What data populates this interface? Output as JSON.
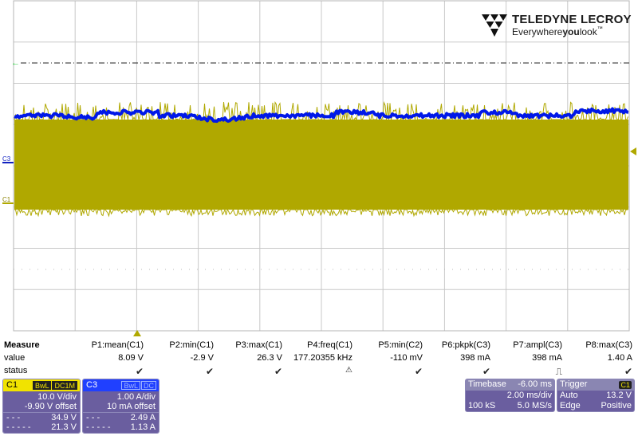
{
  "logo": {
    "brand": "TELEDYNE LECROY",
    "tag_pre": "Everywhere",
    "tag_bold": "you",
    "tag_post": "look",
    "tm": "™"
  },
  "markers": {
    "c3": "C3",
    "c1": "C1"
  },
  "colors": {
    "c1_trace": "#b0a800",
    "c3_trace": "#0018e8",
    "descriptor_body": "#6a5e9f",
    "c1_header": "#f1e300",
    "c3_header": "#2040ff",
    "trigger_marker": "#2ecc40"
  },
  "measure": {
    "title": "Measure",
    "row_value": "value",
    "row_status": "status",
    "params": [
      {
        "name": "P1:mean(C1)",
        "value": "8.09 V",
        "status": "check"
      },
      {
        "name": "P2:min(C1)",
        "value": "-2.9 V",
        "status": "check"
      },
      {
        "name": "P3:max(C1)",
        "value": "26.3 V",
        "status": "check"
      },
      {
        "name": "P4:freq(C1)",
        "value": "177.20355 kHz",
        "status": "warning"
      },
      {
        "name": "P5:min(C2)",
        "value": "-110 mV",
        "status": "check"
      },
      {
        "name": "P6:pkpk(C3)",
        "value": "398 mA",
        "status": "check"
      },
      {
        "name": "P7:ampl(C3)",
        "value": "398 mA",
        "status": "pulse"
      },
      {
        "name": "P8:max(C3)",
        "value": "1.40 A",
        "status": "check"
      }
    ]
  },
  "c1": {
    "name": "C1",
    "badge1": "BwL",
    "badge2": "DC1M",
    "vdiv": "10.0 V/div",
    "offset": "-9.90 V offset",
    "cursor1_label": "- - -",
    "cursor1": "34.9 V",
    "cursor2_label": "- - - - -",
    "cursor2": "21.3 V"
  },
  "c3": {
    "name": "C3",
    "badge1": "BwL",
    "badge2": "DC",
    "vdiv": "1.00 A/div",
    "offset": "10 mA offset",
    "cursor1_label": "- - -",
    "cursor1": "2.49 A",
    "cursor2_label": "- - - - -",
    "cursor2": "1.13 A"
  },
  "timebase": {
    "title": "Timebase",
    "delay": "-6.00 ms",
    "tdiv": "2.00 ms/div",
    "samples": "100 kS",
    "rate": "5.0 MS/s"
  },
  "trigger": {
    "title": "Trigger",
    "channel": "C1",
    "mode": "Auto",
    "level": "13.2 V",
    "type": "Edge",
    "slope": "Positive"
  }
}
